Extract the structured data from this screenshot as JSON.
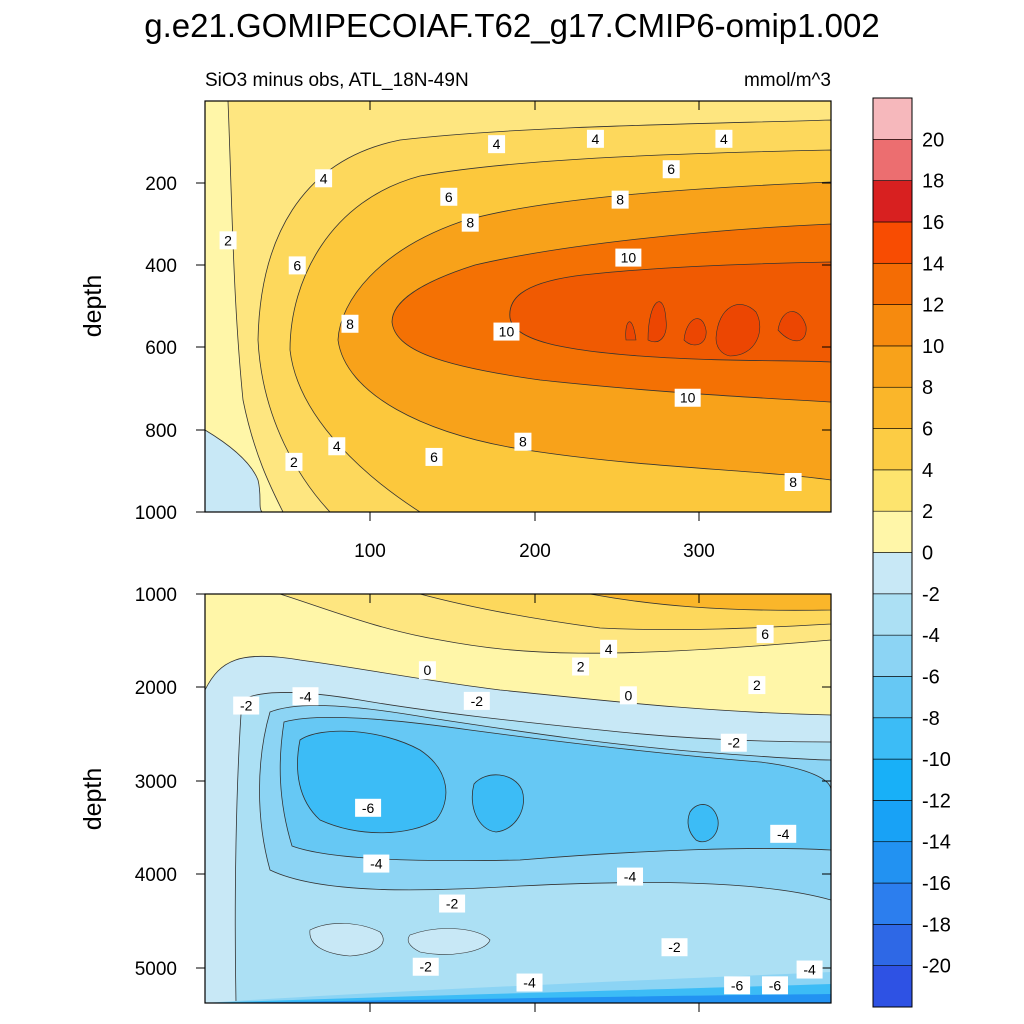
{
  "title": "g.e21.GOMIPECOIAF.T62_g17.CMIP6-omip1.002",
  "chart_data": [
    {
      "type": "contour",
      "panel": "upper",
      "left_label": "SiO3 minus obs, ATL_18N-49N",
      "right_label": "mmol/m^3",
      "xlabel": "",
      "ylabel": "depth",
      "xlim": [
        0,
        380
      ],
      "ylim": [
        1000,
        0
      ],
      "xticks": [
        100,
        200,
        300
      ],
      "xtick_labels": [
        "100",
        "200",
        "300"
      ],
      "yticks": [
        200,
        400,
        600,
        800,
        1000
      ],
      "ytick_labels": [
        "200",
        "400",
        "600",
        "800",
        "1000"
      ],
      "contour_labels": [
        {
          "text": "4",
          "x": 177,
          "y": 105
        },
        {
          "text": "4",
          "x": 237,
          "y": 92
        },
        {
          "text": "4",
          "x": 315,
          "y": 92
        },
        {
          "text": "4",
          "x": 72,
          "y": 188
        },
        {
          "text": "6",
          "x": 148,
          "y": 233
        },
        {
          "text": "6",
          "x": 283,
          "y": 166
        },
        {
          "text": "8",
          "x": 161,
          "y": 296
        },
        {
          "text": "8",
          "x": 252,
          "y": 240
        },
        {
          "text": "10",
          "x": 257,
          "y": 381
        },
        {
          "text": "2",
          "x": 14,
          "y": 339
        },
        {
          "text": "6",
          "x": 56,
          "y": 400
        },
        {
          "text": "8",
          "x": 88,
          "y": 542
        },
        {
          "text": "10",
          "x": 183,
          "y": 561
        },
        {
          "text": "10",
          "x": 293,
          "y": 722
        },
        {
          "text": "8",
          "x": 193,
          "y": 829
        },
        {
          "text": "6",
          "x": 139,
          "y": 866
        },
        {
          "text": "4",
          "x": 80,
          "y": 840
        },
        {
          "text": "2",
          "x": 54,
          "y": 878
        },
        {
          "text": "8",
          "x": 357,
          "y": 927
        }
      ]
    },
    {
      "type": "contour",
      "panel": "lower",
      "xlabel": "",
      "ylabel": "depth",
      "xlim": [
        0,
        380
      ],
      "ylim": [
        5400,
        1000
      ],
      "xticks": [
        100,
        200,
        300
      ],
      "yticks": [
        1000,
        2000,
        3000,
        4000,
        5000
      ],
      "ytick_labels": [
        "1000",
        "2000",
        "3000",
        "4000",
        "5000"
      ],
      "contour_labels": [
        {
          "text": "6",
          "x": 340,
          "y": 1430
        },
        {
          "text": "4",
          "x": 245,
          "y": 1590
        },
        {
          "text": "2",
          "x": 228,
          "y": 1780
        },
        {
          "text": "0",
          "x": 135,
          "y": 1820
        },
        {
          "text": "2",
          "x": 335,
          "y": 1980
        },
        {
          "text": "0",
          "x": 257,
          "y": 2090
        },
        {
          "text": "-4",
          "x": 61,
          "y": 2100
        },
        {
          "text": "-2",
          "x": 165,
          "y": 2150
        },
        {
          "text": "-2",
          "x": 25,
          "y": 2200
        },
        {
          "text": "-2",
          "x": 321,
          "y": 2600
        },
        {
          "text": "-6",
          "x": 99,
          "y": 3300
        },
        {
          "text": "-4",
          "x": 351,
          "y": 3580
        },
        {
          "text": "-4",
          "x": 104,
          "y": 3900
        },
        {
          "text": "-4",
          "x": 258,
          "y": 4040
        },
        {
          "text": "-2",
          "x": 150,
          "y": 4330
        },
        {
          "text": "-2",
          "x": 285,
          "y": 4800
        },
        {
          "text": "-2",
          "x": 134,
          "y": 5010
        },
        {
          "text": "-4",
          "x": 197,
          "y": 5180
        },
        {
          "text": "-6",
          "x": 323,
          "y": 5210
        },
        {
          "text": "-6",
          "x": 346,
          "y": 5210
        },
        {
          "text": "-4",
          "x": 367,
          "y": 5040
        }
      ]
    },
    {
      "type": "colorbar",
      "title": "mmol/m^3",
      "boundaries": [
        -22,
        -20,
        -18,
        -16,
        -14,
        -12,
        -10,
        -8,
        -6,
        -4,
        -2,
        0,
        2,
        4,
        6,
        8,
        10,
        12,
        14,
        16,
        18,
        20,
        22
      ],
      "tick_values": [
        20,
        18,
        16,
        14,
        12,
        10,
        8,
        6,
        4,
        2,
        0,
        -2,
        -4,
        -6,
        -8,
        -10,
        -12,
        -14,
        -16,
        -18,
        -20
      ],
      "tick_labels": [
        "20",
        "18",
        "16",
        "14",
        "12",
        "10",
        "8",
        "6",
        "4",
        "2",
        "0",
        "-2",
        "-4",
        "-6",
        "-8",
        "-10",
        "-12",
        "-14",
        "-16",
        "-18",
        "-20"
      ]
    }
  ],
  "palette": {
    "positive": [
      "#fff6a8",
      "#fee680",
      "#fdd85c",
      "#fcc83c",
      "#fab62a",
      "#f8a21a",
      "#f68a0e",
      "#f47104",
      "#f05a02",
      "#ec4602",
      "#e83204",
      "#e22008",
      "#dc1010",
      "#d00a10",
      "#c40810",
      "#d8242a",
      "#e86c70",
      "#f6b8bc"
    ],
    "negative": [
      "#c8e8f6",
      "#ace0f4",
      "#8cd4f4",
      "#66c8f4",
      "#3cbcf6",
      "#18b0f8",
      "#18a2f6",
      "#2292f2",
      "#2c7eee",
      "#2e68e6",
      "#2e52e4",
      "#2a3ae8",
      "#2626ee",
      "#3412f2",
      "#4e10ee",
      "#7a28ea"
    ]
  }
}
